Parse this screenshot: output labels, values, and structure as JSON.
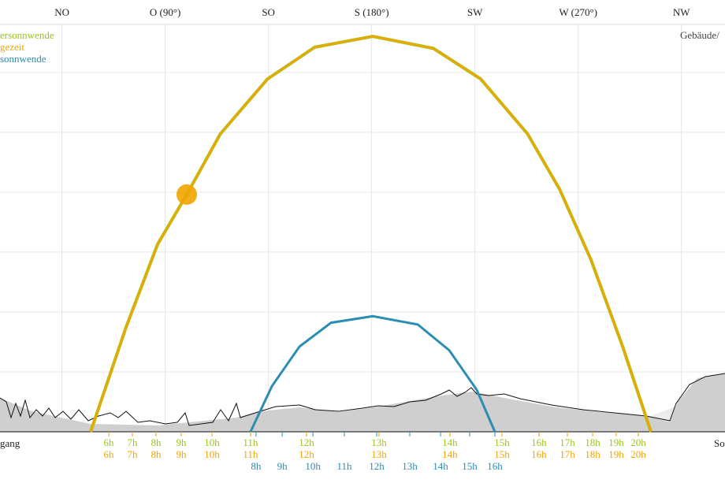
{
  "chart_data": {
    "type": "line",
    "xlim": [
      18,
      334
    ],
    "ylim": [
      0,
      68
    ],
    "xticks": [
      {
        "value": 45,
        "label": "NO"
      },
      {
        "value": 90,
        "label": "O (90°)"
      },
      {
        "value": 135,
        "label": "SO"
      },
      {
        "value": 180,
        "label": "S (180°)"
      },
      {
        "value": 225,
        "label": "SW"
      },
      {
        "value": 270,
        "label": "W (270°)"
      },
      {
        "value": 315,
        "label": "NW"
      }
    ],
    "yticks": [
      10,
      20,
      30,
      40,
      50,
      60
    ],
    "grid": true,
    "annotations": [
      "Gebäude/",
      "gang",
      "So"
    ],
    "series": [
      {
        "name": "ersonnwende",
        "color": "#9cc41a",
        "x": [
          57.5,
          73,
          86.7,
          99.4,
          114,
          134.6,
          155.2,
          180.5,
          206.9,
          227.5,
          248,
          261.9,
          275.6,
          289.4,
          301.7
        ],
        "values": [
          0,
          17.5,
          31.3,
          39.6,
          49.7,
          58.9,
          64.2,
          66,
          64,
          58.9,
          49.7,
          40.5,
          28.7,
          14.2,
          0
        ],
        "hour_labels": [
          "6h",
          "7h",
          "8h",
          "9h",
          "10h",
          "11h",
          "12h",
          "13h",
          "14h",
          "15h",
          "16h",
          "17h",
          "18h",
          "19h",
          "20h"
        ],
        "hour_x": [
          65.4,
          75.7,
          86.0,
          97.0,
          110.4,
          127.2,
          151.6,
          183.2,
          214.1,
          236.8,
          252.9,
          265.3,
          276.3,
          286.6,
          296.2
        ]
      },
      {
        "name": "gezeit",
        "color": "#f0a500",
        "x": [
          57.5,
          73,
          86.7,
          99.4,
          114,
          134.6,
          155.2,
          180.5,
          206.9,
          227.5,
          248,
          261.9,
          275.6,
          289.4,
          301.7
        ],
        "values": [
          0,
          17.5,
          31.3,
          39.6,
          49.7,
          58.9,
          64.2,
          66,
          64,
          58.9,
          49.7,
          40.5,
          28.7,
          14.2,
          0
        ],
        "hour_labels": [
          "6h",
          "7h",
          "8h",
          "9h",
          "10h",
          "11h",
          "12h",
          "13h",
          "14h",
          "15h",
          "16h",
          "17h",
          "18h",
          "19h",
          "20h"
        ],
        "hour_x": [
          65.4,
          75.7,
          86.0,
          97.0,
          110.4,
          127.2,
          151.6,
          183.2,
          214.1,
          236.8,
          252.9,
          265.3,
          276.3,
          286.6,
          296.2
        ],
        "current_position": {
          "x": 99.4,
          "y": 39.6
        }
      },
      {
        "name": "sonnwende",
        "color": "#2b8db0",
        "x": [
          127.2,
          136.5,
          148.5,
          162.3,
          180.5,
          200.1,
          213.8,
          225.8,
          233.7
        ],
        "values": [
          0,
          7.6,
          14.2,
          18.2,
          19.3,
          17.9,
          13.6,
          7.0,
          0
        ],
        "hour_labels": [
          "8h",
          "9h",
          "10h",
          "11h",
          "12h",
          "13h",
          "14h",
          "15h",
          "16h"
        ],
        "hour_x": [
          129.6,
          141.0,
          154.4,
          168.1,
          182.2,
          196.6,
          210.0,
          222.7,
          233.7
        ]
      }
    ]
  }
}
